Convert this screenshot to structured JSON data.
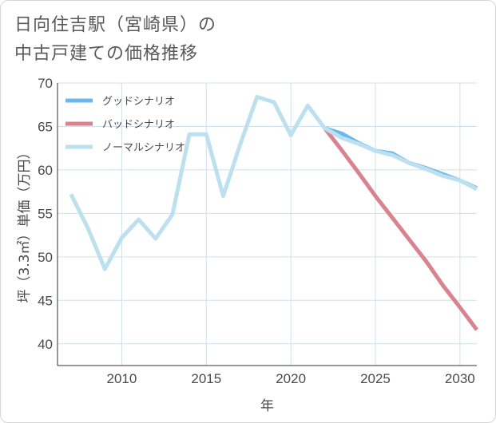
{
  "title": {
    "line1": "日向住吉駅（宮崎県）の",
    "line2": "中古戸建ての価格推移"
  },
  "colors": {
    "good": "#6cb8ea",
    "bad": "#d9838f",
    "normal": "#bde0ef",
    "grid": "#cfe0ec",
    "axis": "#333333"
  },
  "chart_data": {
    "type": "line",
    "xlabel": "年",
    "ylabel": "坪（3.3㎡）単価（万円）",
    "xlim": [
      2006.2,
      2031
    ],
    "ylim": [
      37.5,
      70
    ],
    "xticks": [
      2010,
      2015,
      2020,
      2025,
      2030
    ],
    "yticks": [
      40,
      45,
      50,
      55,
      60,
      65,
      70
    ],
    "grid": true,
    "legend_position": "top-left",
    "series": [
      {
        "key": "good",
        "name": "グッドシナリオ",
        "x": [
          2022,
          2023,
          2024,
          2025,
          2026,
          2027,
          2028,
          2029,
          2030,
          2031
        ],
        "values": [
          64.8,
          64.2,
          63.1,
          62.2,
          61.9,
          60.8,
          60.2,
          59.5,
          58.8,
          57.9
        ]
      },
      {
        "key": "bad",
        "name": "バッドシナリオ",
        "x": [
          2022,
          2023,
          2024,
          2025,
          2026,
          2027,
          2028,
          2029,
          2030,
          2031
        ],
        "values": [
          64.8,
          62.3,
          59.7,
          57.0,
          54.5,
          52.0,
          49.5,
          46.7,
          44.2,
          41.6
        ]
      },
      {
        "key": "normal",
        "name": "ノーマルシナリオ",
        "x": [
          2007,
          2008,
          2009,
          2010,
          2011,
          2012,
          2013,
          2014,
          2015,
          2016,
          2017,
          2018,
          2019,
          2020,
          2021,
          2022,
          2023,
          2024,
          2025,
          2026,
          2027,
          2028,
          2029,
          2030,
          2031
        ],
        "values": [
          57.2,
          53.3,
          48.6,
          52.2,
          54.3,
          52.1,
          54.9,
          64.1,
          64.1,
          57.0,
          62.9,
          68.4,
          67.8,
          64.0,
          67.4,
          64.8,
          63.7,
          63.0,
          62.2,
          61.7,
          60.8,
          60.1,
          59.3,
          58.8,
          57.8
        ]
      }
    ]
  }
}
